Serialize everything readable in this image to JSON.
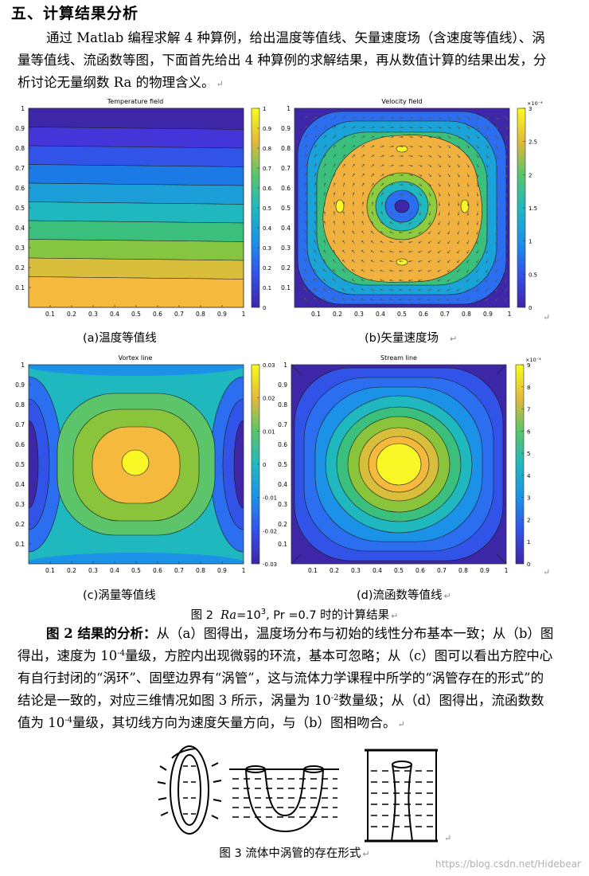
{
  "section": {
    "heading": "五、计算结果分析"
  },
  "intro": {
    "text": "通过 Matlab 编程求解 4 种算例，给出温度等值线、矢量速度场（含速度等值线）、涡量等值线、流函数等图，下面首先给出 4 种算例的求解结果，再从数值计算的结果出发，分析讨论无量纲数 Ra 的物理含义。"
  },
  "figure2": {
    "captions": {
      "a": "(a)温度等值线",
      "b": "(b)矢量速度场",
      "c": "(c)涡量等值线",
      "d": "(d)流函数等值线"
    },
    "caption_prefix": "图 2",
    "caption_ra": "Ra",
    "caption_eq": "=10",
    "caption_exp": "3",
    "caption_pr": ", Pr =0.7",
    "caption_suffix": "时的计算结果"
  },
  "chart_data": [
    {
      "type": "heatmap",
      "title": "Temperature field",
      "x_ticks": [
        "0.1",
        "0.2",
        "0.3",
        "0.4",
        "0.5",
        "0.6",
        "0.7",
        "0.8",
        "0.9",
        "1"
      ],
      "y_ticks": [
        "1",
        "0.9",
        "0.8",
        "0.7",
        "0.6",
        "0.5",
        "0.4",
        "0.3",
        "0.2",
        "0.1"
      ],
      "colorbar_ticks": [
        "1",
        "0.9",
        "0.8",
        "0.7",
        "0.6",
        "0.5",
        "0.4",
        "0.3",
        "0.2",
        "0.1",
        "0"
      ],
      "xlim": [
        0,
        1
      ],
      "ylim": [
        0,
        1
      ],
      "clim": [
        0,
        1
      ],
      "field": "linear horizontal bands, value = 1 - y"
    },
    {
      "type": "heatmap",
      "title": "Velocity field",
      "x_ticks": [
        "0.1",
        "0.2",
        "0.3",
        "0.4",
        "0.5",
        "0.6",
        "0.7",
        "0.8",
        "0.9",
        "1"
      ],
      "y_ticks": [
        "1",
        "0.9",
        "0.8",
        "0.7",
        "0.6",
        "0.5",
        "0.4",
        "0.3",
        "0.2",
        "0.1"
      ],
      "colorbar_ticks": [
        "3",
        "2.5",
        "2",
        "1.5",
        "1",
        "0.5",
        "0"
      ],
      "colorbar_scale": "×10⁻⁴",
      "xlim": [
        0,
        1
      ],
      "ylim": [
        0,
        1
      ],
      "clim": [
        0,
        3
      ]
    },
    {
      "type": "heatmap",
      "title": "Vortex line",
      "x_ticks": [
        "0.1",
        "0.2",
        "0.3",
        "0.4",
        "0.5",
        "0.6",
        "0.7",
        "0.8",
        "0.9",
        "1"
      ],
      "y_ticks": [
        "1",
        "0.9",
        "0.8",
        "0.7",
        "0.6",
        "0.5",
        "0.4",
        "0.3",
        "0.2",
        "0.1"
      ],
      "colorbar_ticks": [
        "0.03",
        "0.02",
        "0.01",
        "0",
        "-0.01",
        "-0.02",
        "-0.03"
      ],
      "xlim": [
        0,
        1
      ],
      "ylim": [
        0,
        1
      ],
      "clim": [
        -0.03,
        0.03
      ]
    },
    {
      "type": "heatmap",
      "title": "Stream line",
      "x_ticks": [
        "0.1",
        "0.2",
        "0.3",
        "0.4",
        "0.5",
        "0.6",
        "0.7",
        "0.8",
        "0.9",
        "1"
      ],
      "y_ticks": [
        "1",
        "0.9",
        "0.8",
        "0.7",
        "0.6",
        "0.5",
        "0.4",
        "0.3",
        "0.2",
        "0.1"
      ],
      "colorbar_ticks": [
        "9",
        "8",
        "7",
        "6",
        "5",
        "4",
        "3",
        "2",
        "1",
        "0"
      ],
      "colorbar_scale": "×10⁻⁴",
      "xlim": [
        0,
        1
      ],
      "ylim": [
        0,
        1
      ],
      "clim": [
        0,
        9
      ]
    }
  ],
  "analysis": {
    "title": "图 2 结果的分析：",
    "p1": "从（a）图得出，温度场分布与初始的线性分布基本一致；从（b）图得出，速度为 10",
    "e1": "-4",
    "p2": "量级，方腔内出现微弱的环流，基本可忽略；从（c）图可以看出方腔中心有自行封闭的“涡环”、固壁边界有“涡管”，这与流体力学课程中所学的“涡管存在的形式”的结论是一致的，对应三维情况如图 3 所示，涡量为 10",
    "e2": "-2",
    "p3": "数量级；从（d）图得出，流函数数值为 10",
    "e3": "-4",
    "p4": "量级，其切线方向为速度矢量方向，与（b）图相吻合。"
  },
  "figure3": {
    "caption": "图 3 流体中涡管的存在形式"
  },
  "watermark": "https://blog.csdn.net/Hidebear",
  "colors": {
    "c0": "#3e26a8",
    "c1": "#2c6ef0",
    "c2": "#18a7d6",
    "c3": "#2bc08f",
    "c4": "#89c43a",
    "c5": "#f5b93d",
    "c6": "#f9f726"
  }
}
